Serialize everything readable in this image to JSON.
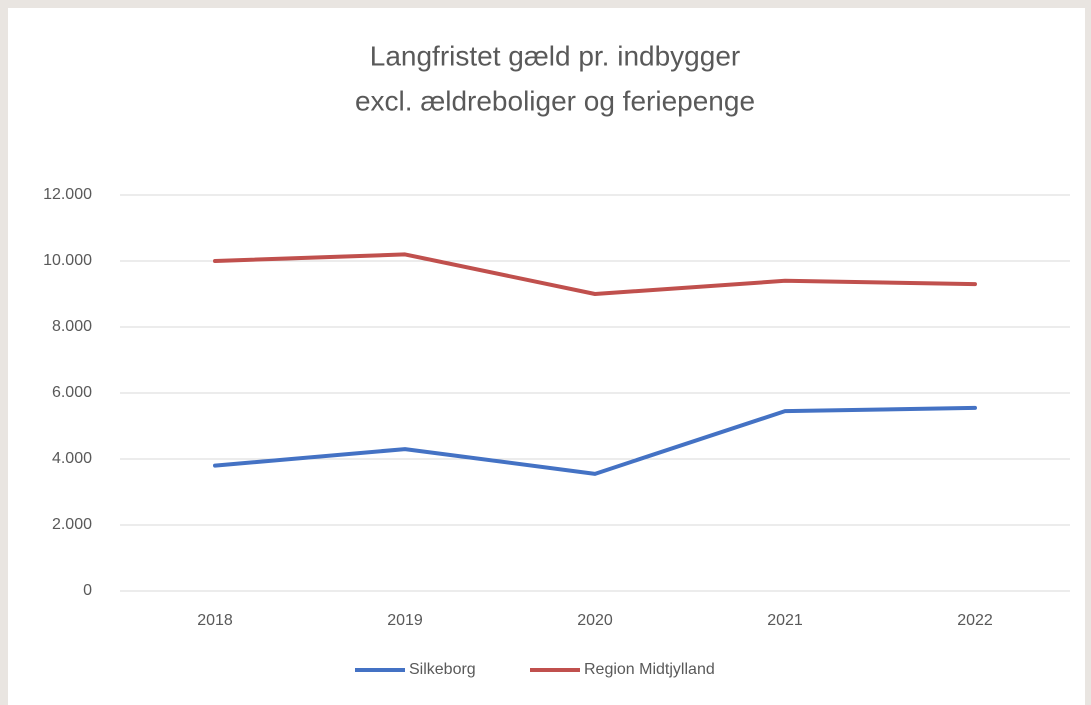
{
  "chart_data": {
    "type": "line",
    "title": "Langfristet gæld pr. indbygger",
    "subtitle": "excl. ældreboliger og feriepenge",
    "categories": [
      "2018",
      "2019",
      "2020",
      "2021",
      "2022"
    ],
    "series": [
      {
        "name": "Silkeborg",
        "color": "#4472c4",
        "values": [
          3800,
          4300,
          3550,
          5450,
          5550
        ]
      },
      {
        "name": "Region Midtjylland",
        "color": "#c0504d",
        "values": [
          10000,
          10200,
          9000,
          9400,
          9300
        ]
      }
    ],
    "ylim": [
      0,
      12000
    ],
    "yticks": [
      0,
      {
        "value": 2000,
        "label": "2.000"
      },
      {
        "value": 4000,
        "label": "4.000"
      },
      {
        "value": 6000,
        "label": "6.000"
      },
      {
        "value": 8000,
        "label": "8.000"
      },
      {
        "value": 10000,
        "label": "10.000"
      },
      {
        "value": 12000,
        "label": "12.000"
      }
    ],
    "grid": true,
    "legend": "bottom"
  }
}
